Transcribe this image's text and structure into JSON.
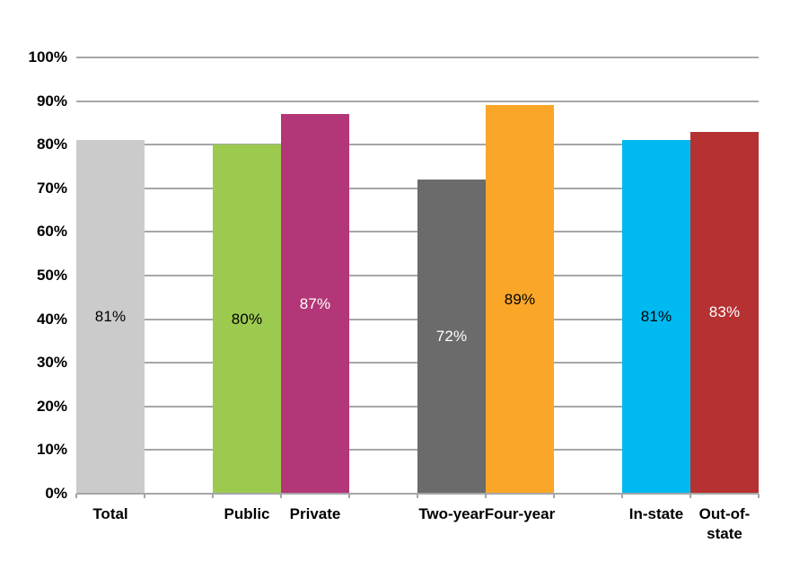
{
  "chart_data": {
    "type": "bar",
    "title": "",
    "xlabel": "",
    "ylabel": "",
    "categories": [
      "Total",
      "Public",
      "Private",
      "Two-year",
      "Four-year",
      "In-state",
      "Out-of-state"
    ],
    "values": [
      81,
      80,
      87,
      72,
      89,
      81,
      83
    ],
    "data_labels": [
      "81%",
      "80%",
      "87%",
      "72%",
      "89%",
      "81%",
      "83%"
    ],
    "bar_colors": [
      "#CBCBCB",
      "#9CCA4F",
      "#B33778",
      "#6B6B6B",
      "#FAA628",
      "#00B9F1",
      "#B53132"
    ],
    "data_label_colors": [
      "#000000",
      "#000000",
      "#FFFFFF",
      "#FFFFFF",
      "#000000",
      "#000000",
      "#FFFFFF"
    ],
    "groups": [
      [
        0
      ],
      [
        1,
        2
      ],
      [
        3,
        4
      ],
      [
        5,
        6
      ]
    ],
    "y_ticks": [
      "0%",
      "10%",
      "20%",
      "30%",
      "40%",
      "50%",
      "60%",
      "70%",
      "80%",
      "90%",
      "100%"
    ],
    "ylim": [
      0,
      100
    ],
    "grid": true,
    "gridline_color": "#A6A6A6",
    "legend": "none"
  }
}
